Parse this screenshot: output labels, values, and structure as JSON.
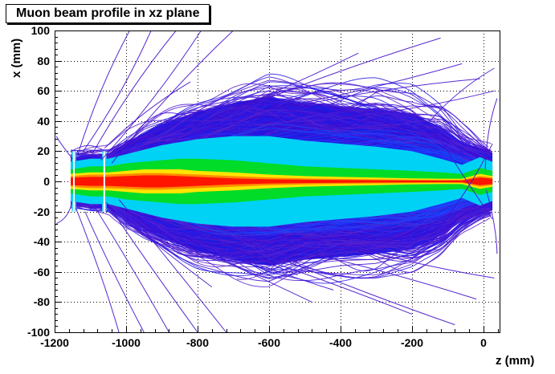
{
  "chart_data": {
    "type": "line",
    "title": "Muon beam profile in xz plane",
    "xlabel": "z (mm)",
    "ylabel": "x (mm)",
    "xlim": [
      -1200,
      45
    ],
    "ylim": [
      -100,
      100
    ],
    "x_ticks": [
      -1200,
      -1000,
      -800,
      -600,
      -400,
      -200,
      0
    ],
    "y_ticks": [
      -100,
      -80,
      -60,
      -40,
      -20,
      0,
      20,
      40,
      60,
      80,
      100
    ],
    "grid": true,
    "legend": "none",
    "palette": {
      "frame": "#000000",
      "grid": "#000000",
      "text": "#000000",
      "fringe_track_colors": [
        "#3c0ad0",
        "#4616d6",
        "#2a1ae8",
        "#5a22cc"
      ],
      "mid_track_colors": [
        "#1b2cf0",
        "#2b3cff",
        "#0a55ff"
      ],
      "stray_color": "#4512cc",
      "bands": {
        "blue": "#2018e0",
        "cyan": "#00d2f5",
        "green": "#00dc28",
        "yellow": "#ffe400",
        "orange": "#ff8c00",
        "red": "#ff1400"
      },
      "collimator_fill": "#40d8f0",
      "collimator_line": "#ffffff"
    },
    "beam": {
      "z": [
        -1155,
        -1100,
        -1050,
        -1000,
        -950,
        -900,
        -850,
        -800,
        -700,
        -600,
        -500,
        -400,
        -300,
        -200,
        -120,
        -60,
        -10,
        25
      ],
      "fringe": [
        18,
        20,
        20,
        30,
        38,
        44,
        50,
        55,
        62,
        68,
        64,
        62,
        62,
        58,
        48,
        34,
        26,
        22
      ],
      "blue": [
        16,
        18,
        18,
        26,
        32,
        38,
        42,
        46,
        52,
        56,
        52,
        50,
        48,
        45,
        36,
        26,
        22,
        19
      ],
      "cyan": [
        13,
        15,
        15,
        18,
        21,
        24,
        26,
        28,
        30,
        30,
        27,
        25,
        23,
        20,
        15,
        11,
        16,
        13
      ],
      "green": [
        8,
        10,
        10,
        12,
        13,
        14,
        15,
        15,
        14,
        12,
        10,
        9,
        8,
        7,
        6,
        5,
        9,
        7
      ],
      "yellow": [
        5,
        6,
        6,
        7,
        8,
        8,
        8,
        7,
        6,
        4.5,
        3.5,
        3,
        2.5,
        2,
        1.8,
        1.8,
        5,
        3.5
      ],
      "orange": [
        3.5,
        4.5,
        4.5,
        5,
        5.5,
        5.5,
        5,
        4.5,
        3.5,
        2.5,
        2,
        1.6,
        1.3,
        1.1,
        1,
        1,
        3.5,
        2.5
      ],
      "red": [
        2.5,
        3,
        3,
        3.5,
        4,
        4,
        3.5,
        3,
        2,
        1.4,
        1.1,
        0.9,
        0.7,
        0.6,
        0.5,
        0.6,
        2.5,
        1.8
      ]
    },
    "collimators": [
      {
        "z": -1146,
        "width": 12,
        "halfheight": 20
      },
      {
        "z": -1061,
        "width": 12,
        "halfheight": 20
      }
    ],
    "stray_tracks": [
      [
        -1135,
        18,
        -990,
        100
      ],
      [
        -1120,
        20,
        -930,
        100
      ],
      [
        -1100,
        16,
        -860,
        100
      ],
      [
        -1070,
        14,
        -790,
        100
      ],
      [
        -1040,
        12,
        -700,
        100
      ],
      [
        -900,
        30,
        -350,
        85
      ],
      [
        -760,
        40,
        -120,
        95
      ],
      [
        -660,
        45,
        -60,
        78
      ],
      [
        -520,
        50,
        -10,
        68
      ],
      [
        -400,
        42,
        30,
        60
      ],
      [
        -150,
        40,
        30,
        75
      ],
      [
        -1140,
        -18,
        -1020,
        -100
      ],
      [
        -1115,
        -20,
        -950,
        -100
      ],
      [
        -1090,
        -16,
        -880,
        -100
      ],
      [
        -1055,
        -14,
        -800,
        -100
      ],
      [
        -1020,
        -12,
        -720,
        -100
      ],
      [
        -950,
        -30,
        -480,
        -80
      ],
      [
        -820,
        -38,
        -420,
        -72
      ],
      [
        -700,
        -45,
        -200,
        -88
      ],
      [
        -580,
        -50,
        -80,
        -95
      ],
      [
        -480,
        -48,
        -20,
        -78
      ],
      [
        -360,
        -44,
        30,
        -64
      ],
      [
        -1195,
        30,
        -1150,
        15
      ],
      [
        -1195,
        -28,
        -1152,
        -14
      ],
      [
        5,
        8,
        38,
        55
      ],
      [
        8,
        -6,
        38,
        -48
      ],
      [
        -140,
        35,
        25,
        -25
      ],
      [
        -140,
        -35,
        25,
        25
      ],
      [
        -1060,
        22,
        -820,
        66
      ],
      [
        -1010,
        -24,
        -760,
        -70
      ],
      [
        -880,
        26,
        -560,
        60
      ],
      [
        -840,
        -28,
        -520,
        -62
      ]
    ],
    "texture": {
      "seed": 7,
      "outer_tracks": 170,
      "mid_tracks": 130
    }
  }
}
